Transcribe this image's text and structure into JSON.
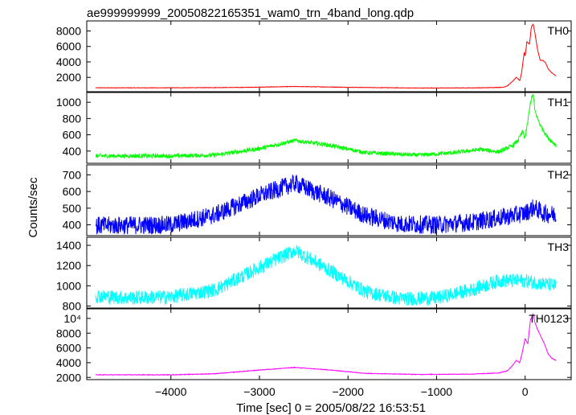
{
  "chart_data": {
    "type": "line",
    "title": "ae999999999_20050822165351_wam0_trn_4band_long.qdp",
    "xlabel": "Time [sec] 0 = 2005/08/22 16:53:51",
    "ylabel": "Counts/sec",
    "xlim": [
      -4950,
      520
    ],
    "x_ticks": [
      -4000,
      -3000,
      -2000,
      -1000,
      0
    ],
    "x_tick_labels": [
      "−4000",
      "−3000",
      "−2000",
      "−1000",
      "0"
    ],
    "grid": false,
    "panels": [
      {
        "name": "TH0",
        "color": "#ff0000",
        "ylim": [
          150,
          9300
        ],
        "y_ticks": [
          2000,
          4000,
          6000,
          8000
        ],
        "y_tick_labels": [
          "2000",
          "4000",
          "6000",
          "8000"
        ],
        "noise": 30,
        "x": [
          -4850,
          -4000,
          -3200,
          -2600,
          -2000,
          -1200,
          -500,
          -250,
          -200,
          -150,
          -100,
          -60,
          -40,
          -10,
          0,
          20,
          50,
          70,
          90,
          110,
          140,
          170,
          200,
          230,
          260,
          300,
          350
        ],
        "y": [
          650,
          650,
          700,
          820,
          720,
          620,
          650,
          720,
          900,
          1400,
          2000,
          1600,
          2600,
          5300,
          4700,
          6600,
          6300,
          8500,
          8900,
          7800,
          5600,
          4200,
          4200,
          3900,
          3100,
          2600,
          2200
        ]
      },
      {
        "name": "TH1",
        "color": "#00ff00",
        "ylim": [
          250,
          1120
        ],
        "y_ticks": [
          400,
          600,
          800,
          1000
        ],
        "y_tick_labels": [
          "400",
          "600",
          "800",
          "1000"
        ],
        "noise": 25,
        "x": [
          -4850,
          -4000,
          -3500,
          -3000,
          -2600,
          -2200,
          -1800,
          -1200,
          -800,
          -500,
          -300,
          -150,
          -80,
          -30,
          0,
          30,
          60,
          90,
          110,
          140,
          180,
          220,
          260,
          300,
          350
        ],
        "y": [
          340,
          340,
          350,
          430,
          530,
          470,
          380,
          350,
          380,
          420,
          390,
          460,
          530,
          640,
          560,
          760,
          1000,
          1100,
          900,
          800,
          700,
          630,
          560,
          520,
          470
        ]
      },
      {
        "name": "TH2",
        "color": "#0000ff",
        "ylim": [
          335,
          760
        ],
        "y_ticks": [
          400,
          500,
          600,
          700
        ],
        "y_tick_labels": [
          "400",
          "500",
          "600",
          "700"
        ],
        "noise": 55,
        "x": [
          -4850,
          -4000,
          -3500,
          -3000,
          -2600,
          -2200,
          -1800,
          -1400,
          -1000,
          -600,
          -200,
          0,
          100,
          200,
          350
        ],
        "y": [
          395,
          400,
          460,
          575,
          650,
          560,
          455,
          405,
          400,
          415,
          450,
          470,
          505,
          470,
          460
        ]
      },
      {
        "name": "TH3",
        "color": "#00ffff",
        "ylim": [
          780,
          1480
        ],
        "y_ticks": [
          800,
          1000,
          1200,
          1400
        ],
        "y_tick_labels": [
          "800",
          "1000",
          "1200",
          "1400"
        ],
        "noise": 70,
        "x": [
          -4850,
          -4500,
          -4000,
          -3500,
          -3000,
          -2600,
          -2200,
          -1800,
          -1400,
          -1000,
          -600,
          -300,
          0,
          350
        ],
        "y": [
          900,
          880,
          890,
          960,
          1180,
          1350,
          1150,
          940,
          870,
          880,
          960,
          1050,
          1050,
          1000
        ]
      },
      {
        "name": "TH0123",
        "color": "#ff00ff",
        "ylim": [
          1700,
          11300
        ],
        "y_ticks": [
          2000,
          4000,
          6000,
          8000,
          10000
        ],
        "y_tick_labels": [
          "2000",
          "4000",
          "6000",
          "8000",
          "10⁴"
        ],
        "noise": 40,
        "x": [
          -4850,
          -4000,
          -3500,
          -3000,
          -2600,
          -2200,
          -1800,
          -1200,
          -600,
          -300,
          -200,
          -150,
          -100,
          -60,
          -30,
          0,
          30,
          60,
          90,
          110,
          140,
          180,
          220,
          260,
          300,
          350
        ],
        "y": [
          2350,
          2350,
          2500,
          3000,
          3350,
          3000,
          2550,
          2400,
          2450,
          2600,
          2900,
          3500,
          4300,
          4000,
          5500,
          7300,
          6500,
          9800,
          10600,
          9500,
          8500,
          7500,
          6500,
          5200,
          4600,
          4300
        ]
      }
    ]
  }
}
